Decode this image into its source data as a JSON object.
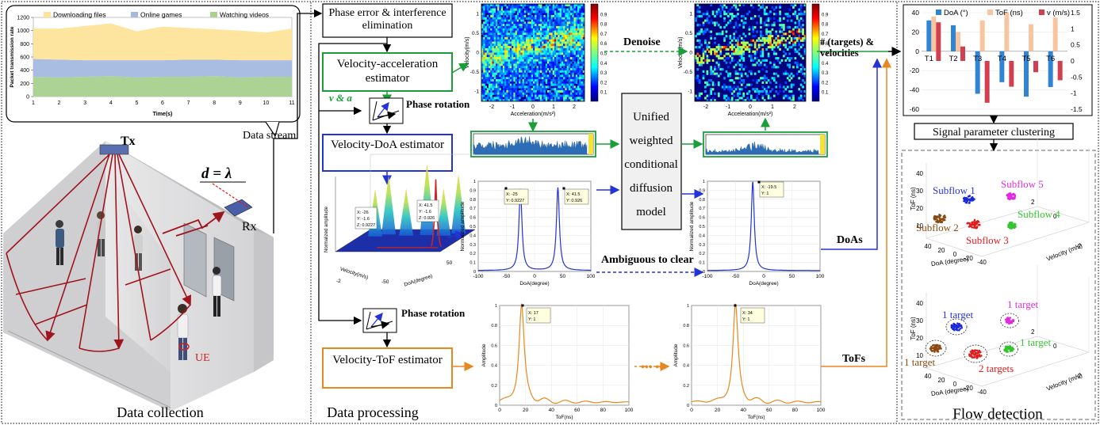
{
  "colors": {
    "green": "#1a9e3a",
    "blue": "#2433d6",
    "orange": "#e8871e",
    "darkred": "#a0141e",
    "red": "#d42020",
    "black": "#000000"
  },
  "collection": {
    "section_label": "Data collection",
    "data_stream_label": "Data stream",
    "tx_label": "Tx",
    "rx_label": "Rx",
    "distance_label": "d = λ",
    "ue_label": "UE",
    "traffic_chart": {
      "legend": [
        "Downloading files",
        "Online games",
        "Watching videos"
      ],
      "ylabel": "Packet transmission rate",
      "xlabel": "Time(s)",
      "xticks": [
        "1",
        "2",
        "3",
        "4",
        "5",
        "6",
        "7",
        "8",
        "9",
        "10",
        "11"
      ],
      "yticks": [
        "0",
        "200",
        "400",
        "600",
        "800",
        "1000",
        "1200"
      ]
    }
  },
  "processing": {
    "section_label": "Data processing",
    "phase_box": "Phase error & interference elimination",
    "va_box": "Velocity-acceleration estimator",
    "vdoa_box": "Velocity-DoA estimator",
    "vtof_box": "Velocity-ToF estimator",
    "phase_rotation_1": "Phase rotation",
    "phase_rotation_2": "Phase rotation",
    "va_output": "v & a",
    "denoise": "Denoise",
    "ambiguous": "Ambiguous to clear",
    "diffusion_model": [
      "Unified",
      "weighted",
      "conditional",
      "diffusion",
      "model"
    ],
    "targets_label": "# (targets) & velocities",
    "doas_label": "DoAs",
    "tofs_label": "ToFs",
    "dots": "••• •••",
    "heatmap_axes": {
      "x": "Acceleration(m/s²)",
      "y": "Velocity(m/s)",
      "xticks": [
        "-2",
        "-1",
        "0",
        "1",
        "2"
      ],
      "yticks": [
        "-1",
        "-0.5",
        "0",
        "0.5",
        "1"
      ],
      "cticks": [
        "0.1",
        "0.2",
        "0.3",
        "0.4",
        "0.5",
        "0.6",
        "0.7",
        "0.8",
        "0.9"
      ]
    },
    "doa_axes": {
      "x": "DoA(degree)",
      "y": "Normalized amplitude",
      "xticks": [
        "-100",
        "-50",
        "0",
        "50",
        "100"
      ],
      "yticks": [
        "0",
        "0.1",
        "0.2",
        "0.3",
        "0.4",
        "0.5",
        "0.6",
        "0.7",
        "0.8",
        "0.9",
        "1"
      ]
    },
    "tof_axes": {
      "x": "ToF(ns)",
      "y": "Amplitude",
      "xticks": [
        "0",
        "20",
        "40",
        "60",
        "80",
        "100"
      ],
      "yticks": [
        "0",
        "0.2",
        "0.4",
        "0.6",
        "0.8",
        "1"
      ]
    },
    "surface_axes": {
      "x": "Velocity(m/s)",
      "y": "DoA(degree)",
      "z": "Normalized amplitude",
      "labels": [
        "-2",
        "0",
        "50",
        "-50"
      ]
    },
    "datatips": {
      "doa_left_a": [
        "X: -25",
        "Y: 0.9227"
      ],
      "doa_left_b": [
        "X: 41.5",
        "Y: 0.926"
      ],
      "doa_right": [
        "X: -19.5",
        "Y: 1"
      ],
      "tof_left": [
        "X: 17",
        "Y: 1"
      ],
      "tof_right": [
        "X: 34",
        "Y: 1"
      ],
      "surface_a": [
        "X: -26",
        "Y: -1.6",
        "Z: 0.9227"
      ],
      "surface_b": [
        "X: 41.5",
        "Y: -1.6",
        "Z: 0.926"
      ]
    }
  },
  "detection": {
    "section_label": "Flow detection",
    "clustering_box": "Signal parameter clustering",
    "scatter_axes": {
      "x": "DoA (degree)",
      "y": "ToF (ns)",
      "z": "Velocity (m/s)",
      "xticks": [
        "40",
        "20",
        "0",
        "-20",
        "-40"
      ],
      "zticks": [
        "-2",
        "0",
        "2"
      ],
      "yticks": [
        "10",
        "20",
        "30",
        "40"
      ]
    },
    "subflows": [
      "Subflow 1",
      "Subflow 5",
      "Subflow 4",
      "Subflow 2",
      "Subflow 3"
    ],
    "targets": [
      "1 target",
      "1 target",
      "1 target",
      "1 target",
      "2 targets"
    ]
  },
  "chart_data": [
    {
      "type": "area",
      "title": "",
      "xlabel": "Time(s)",
      "ylabel": "Packet transmission rate",
      "x": [
        1,
        2,
        3,
        4,
        5,
        6,
        7,
        8,
        9,
        10,
        11
      ],
      "ylim": [
        0,
        1200
      ],
      "series": [
        {
          "name": "Watching videos",
          "values": [
            300,
            290,
            300,
            310,
            290,
            300,
            300,
            310,
            290,
            300,
            300
          ]
        },
        {
          "name": "Online games",
          "values": [
            270,
            270,
            250,
            240,
            260,
            250,
            260,
            250,
            260,
            250,
            250
          ]
        },
        {
          "name": "Downloading files",
          "values": [
            460,
            470,
            520,
            560,
            440,
            510,
            480,
            460,
            450,
            420,
            480
          ]
        }
      ]
    },
    {
      "type": "bar",
      "title": "",
      "categories": [
        "T1",
        "T2",
        "T3",
        "T4",
        "T5",
        "T6"
      ],
      "ylim": [
        -60,
        40
      ],
      "y2lim": [
        -1.5,
        1.5
      ],
      "yticks": [
        "-60",
        "-40",
        "-20",
        "0",
        "20",
        "40"
      ],
      "y2ticks": [
        "-1.5",
        "-1",
        "-0.5",
        "0",
        "0.5",
        "1",
        "1.5"
      ],
      "series": [
        {
          "name": "DoA (°)",
          "axis": "left",
          "values": [
            32,
            27,
            -44,
            -32,
            -47,
            -37
          ]
        },
        {
          "name": "ToF (ns)",
          "axis": "left",
          "values": [
            36,
            20,
            32,
            40,
            28,
            35
          ]
        },
        {
          "name": "v (m/s)",
          "axis": "right",
          "values": [
            1.2,
            0.45,
            -1.3,
            -0.8,
            -0.35,
            -0.6
          ]
        }
      ]
    }
  ]
}
